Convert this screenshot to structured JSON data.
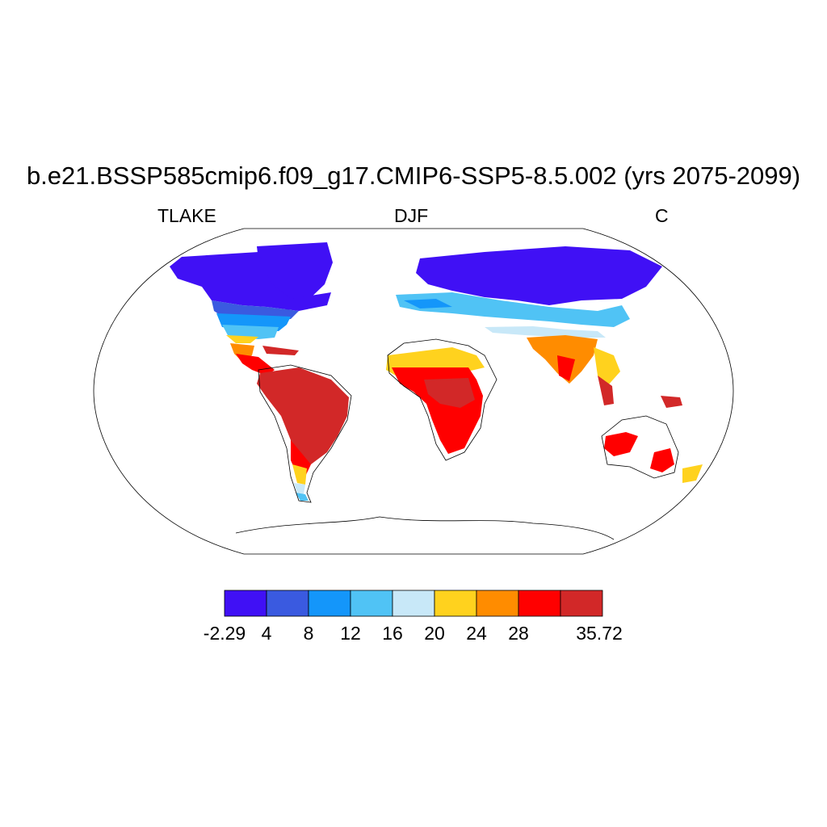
{
  "title": "b.e21.BSSP585cmip6.f09_g17.CMIP6-SSP5-8.5.002 (yrs 2075-2099)",
  "subtitle_left": "TLAKE",
  "subtitle_center": "DJF",
  "subtitle_right": "C",
  "colorbar": {
    "bins": [
      {
        "color": "#4010f5"
      },
      {
        "color": "#3a5ae0"
      },
      {
        "color": "#1496fa"
      },
      {
        "color": "#50c3f5"
      },
      {
        "color": "#c8e8f8"
      },
      {
        "color": "#ffd21e"
      },
      {
        "color": "#ff8c00"
      },
      {
        "color": "#ff0000"
      },
      {
        "color": "#d22828"
      }
    ],
    "labels": [
      "-2.29",
      "4",
      "8",
      "12",
      "16",
      "20",
      "24",
      "28",
      "35.72"
    ]
  }
}
